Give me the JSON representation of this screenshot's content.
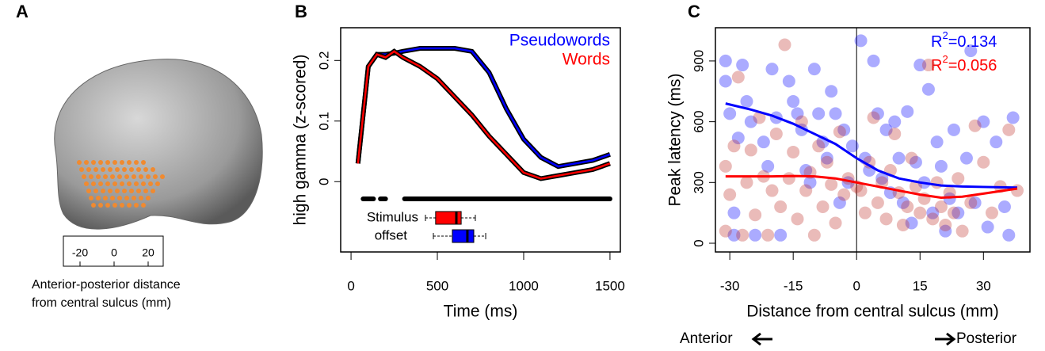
{
  "panel_a": {
    "label": "A",
    "scale_ticks": [
      -20,
      0,
      20
    ],
    "caption": [
      "Anterior-posterior distance",
      "from central sulcus (mm)"
    ]
  },
  "chart_data": [
    {
      "type": "line",
      "panel": "B",
      "xlabel": "Time (ms)",
      "ylabel": "high gamma (z-scored)",
      "xlim": [
        -60,
        1560
      ],
      "ylim": [
        -0.116,
        0.254
      ],
      "xticks": [
        0,
        500,
        1000,
        1500
      ],
      "yticks": [
        0,
        0.1,
        0.2
      ],
      "x": [
        40,
        100,
        150,
        200,
        250,
        300,
        400,
        500,
        600,
        700,
        800,
        900,
        1000,
        1100,
        1200,
        1300,
        1400,
        1500
      ],
      "series": [
        {
          "name": "Pseudowords",
          "color": "#0000ff",
          "values": [
            0.03,
            0.19,
            0.21,
            0.21,
            0.212,
            0.215,
            0.22,
            0.22,
            0.22,
            0.215,
            0.18,
            0.12,
            0.07,
            0.04,
            0.025,
            0.03,
            0.035,
            0.045
          ]
        },
        {
          "name": "Words",
          "color": "#ff0000",
          "values": [
            0.03,
            0.19,
            0.21,
            0.205,
            0.215,
            0.205,
            0.19,
            0.17,
            0.14,
            0.11,
            0.075,
            0.045,
            0.015,
            0.005,
            0.01,
            0.015,
            0.02,
            0.03
          ]
        }
      ],
      "significance_intervals": [
        [
          70,
          130
        ],
        [
          170,
          200
        ],
        [
          310,
          1500
        ]
      ],
      "boxplot_label": [
        "Stimulus",
        "offset"
      ],
      "boxplots": [
        {
          "color": "#ff0000",
          "whisker_low": 431,
          "q1": 490,
          "median": 610,
          "q3": 638,
          "whisker_high": 720
        },
        {
          "color": "#0000ff",
          "whisker_low": 477,
          "q1": 587,
          "median": 674,
          "q3": 711,
          "whisker_high": 780
        }
      ]
    },
    {
      "type": "scatter",
      "panel": "C",
      "xlabel": "Distance from central sulcus (mm)",
      "ylabel": "Peak latency (ms)",
      "xlim": [
        -33.4,
        41
      ],
      "ylim": [
        -43,
        1064
      ],
      "xticks": [
        -30,
        -15,
        0,
        15,
        30
      ],
      "yticks": [
        0,
        300,
        600,
        900
      ],
      "direction_labels": [
        "Anterior",
        "Posterior"
      ],
      "r2": [
        {
          "base": "R",
          "sup": "2",
          "rest": "=0.134",
          "color": "#0000ff"
        },
        {
          "base": "R",
          "sup": "2",
          "rest": "=0.056",
          "color": "#ff0000"
        }
      ],
      "series": [
        {
          "color": "#0000ff",
          "x": [
            -31,
            -31,
            -30,
            -29,
            -29,
            -28,
            -27,
            -26,
            -25,
            -24,
            -22,
            -21,
            -20,
            -19,
            -18,
            -16,
            -15,
            -14,
            -13,
            -12,
            -11,
            -10,
            -9,
            -8,
            -7,
            -6,
            -5,
            -4,
            -3,
            -2,
            -1,
            1,
            2,
            3,
            4,
            5,
            6,
            7,
            8,
            9,
            10,
            11,
            12,
            13,
            14,
            15,
            16,
            17,
            18,
            19,
            20,
            21,
            22,
            23,
            24,
            26,
            27,
            28,
            30,
            31,
            33,
            35,
            36,
            37
          ],
          "values": [
            900,
            800,
            640,
            150,
            40,
            520,
            880,
            700,
            600,
            40,
            500,
            380,
            860,
            620,
            40,
            800,
            700,
            640,
            560,
            360,
            300,
            860,
            640,
            500,
            420,
            750,
            640,
            200,
            560,
            300,
            480,
            1000,
            420,
            360,
            900,
            640,
            320,
            560,
            250,
            600,
            420,
            200,
            650,
            100,
            400,
            880,
            300,
            760,
            150,
            500,
            380,
            60,
            220,
            560,
            150,
            420,
            950,
            200,
            600,
            80,
            500,
            180,
            40,
            620
          ]
        },
        {
          "color": "#c0302a",
          "x": [
            -31,
            -31,
            -30,
            -29,
            -28,
            -27,
            -26,
            -25,
            -24,
            -23,
            -22,
            -21,
            -20,
            -19,
            -18,
            -17,
            -16,
            -15,
            -14,
            -13,
            -12,
            -11,
            -10,
            -9,
            -8,
            -7,
            -6,
            -5,
            -4,
            -3,
            -2,
            0,
            1,
            2,
            3,
            4,
            5,
            6,
            7,
            8,
            9,
            10,
            11,
            12,
            13,
            14,
            15,
            16,
            17,
            18,
            19,
            20,
            21,
            22,
            23,
            24,
            25,
            27,
            28,
            30,
            32,
            34,
            36,
            38
          ],
          "values": [
            380,
            60,
            240,
            480,
            820,
            40,
            300,
            460,
            140,
            620,
            330,
            40,
            260,
            540,
            180,
            980,
            320,
            450,
            120,
            600,
            260,
            350,
            40,
            480,
            180,
            400,
            290,
            100,
            550,
            240,
            320,
            280,
            260,
            150,
            400,
            620,
            200,
            300,
            120,
            360,
            540,
            250,
            90,
            180,
            420,
            280,
            150,
            220,
            880,
            120,
            300,
            180,
            90,
            250,
            150,
            320,
            60,
            200,
            580,
            400,
            150,
            280,
            560,
            260
          ]
        }
      ],
      "fits": [
        {
          "color": "#0000ff",
          "x": [
            -31,
            -25,
            -20,
            -15,
            -10,
            -5,
            0,
            5,
            10,
            15,
            20,
            25,
            30,
            38
          ],
          "values": [
            690,
            660,
            630,
            590,
            540,
            490,
            420,
            360,
            320,
            300,
            285,
            280,
            278,
            275
          ]
        },
        {
          "color": "#ff0000",
          "x": [
            -31,
            -25,
            -20,
            -15,
            -10,
            -5,
            0,
            5,
            10,
            15,
            20,
            25,
            30,
            38
          ],
          "values": [
            330,
            330,
            330,
            332,
            330,
            320,
            300,
            280,
            260,
            240,
            225,
            230,
            245,
            270
          ]
        }
      ]
    }
  ]
}
